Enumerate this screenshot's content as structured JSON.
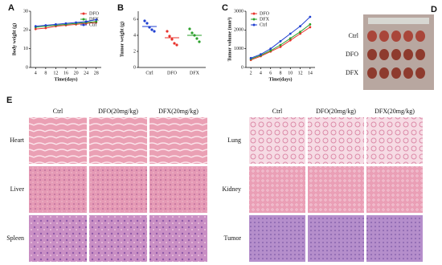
{
  "chart_data": [
    {
      "type": "line",
      "label": "A",
      "xlabel": "Time(days)",
      "ylabel": "Body weight (g)",
      "x": [
        4,
        8,
        12,
        16,
        20,
        24,
        28
      ],
      "xlim": [
        2,
        30
      ],
      "xticks": [
        4,
        8,
        12,
        16,
        20,
        24,
        28
      ],
      "ylim": [
        0,
        30
      ],
      "yticks": [
        0,
        10,
        20,
        30
      ],
      "legend": "upper right",
      "series": [
        {
          "name": "DFO",
          "color": "#e8322b",
          "values": [
            20.5,
            21,
            22,
            22.5,
            23,
            23.5,
            24
          ]
        },
        {
          "name": "DFX",
          "color": "#2ca02c",
          "values": [
            21.5,
            22,
            22.5,
            23,
            23.5,
            24,
            24.5
          ]
        },
        {
          "name": "Ctrl",
          "color": "#1f3fd1",
          "values": [
            22,
            22.5,
            23,
            23.5,
            24,
            24.5,
            25.5
          ]
        }
      ]
    },
    {
      "type": "dot",
      "label": "B",
      "ylabel": "Tumor weight (g)",
      "categories": [
        "Ctrl",
        "DFO",
        "DFX"
      ],
      "colors": [
        "#1f3fd1",
        "#e8322b",
        "#2ca02c"
      ],
      "values": [
        [
          5.8,
          5.5,
          5.0,
          4.7,
          4.5
        ],
        [
          4.5,
          3.9,
          3.5,
          3.0,
          2.8
        ],
        [
          4.8,
          4.3,
          4.0,
          3.6,
          3.2
        ]
      ],
      "means": [
        5.1,
        3.7,
        4.0
      ],
      "ylim": [
        0,
        7
      ],
      "yticks": [
        0,
        2,
        4,
        6
      ]
    },
    {
      "type": "line",
      "label": "C",
      "xlabel": "Time(days)",
      "ylabel": "Tumor volume (mm³)",
      "x": [
        2,
        4,
        6,
        8,
        10,
        12,
        14
      ],
      "xlim": [
        1,
        15
      ],
      "xticks": [
        2,
        4,
        6,
        8,
        10,
        12,
        14
      ],
      "ylim": [
        0,
        3000
      ],
      "yticks": [
        0,
        1000,
        2000,
        3000
      ],
      "legend": "upper left",
      "series": [
        {
          "name": "DFO",
          "color": "#e8322b",
          "values": [
            400,
            600,
            850,
            1100,
            1450,
            1800,
            2150
          ]
        },
        {
          "name": "DFX",
          "color": "#2ca02c",
          "values": [
            450,
            650,
            900,
            1200,
            1550,
            1900,
            2300
          ]
        },
        {
          "name": "Ctrl",
          "color": "#1f3fd1",
          "values": [
            500,
            700,
            1000,
            1400,
            1800,
            2200,
            2700
          ]
        }
      ]
    }
  ],
  "photo": {
    "label": "D",
    "rows": [
      "Ctrl",
      "DFO",
      "DFX"
    ]
  },
  "histology": {
    "label": "E",
    "left": {
      "columns": [
        "Ctrl",
        "DFO(20mg/kg)",
        "DFX(20mg/kg)"
      ],
      "rows": [
        "Heart",
        "Liver",
        "Spleen"
      ]
    },
    "right": {
      "columns": [
        "Ctrl",
        "DFO(20mg/kg)",
        "DFX(20mg/kg)"
      ],
      "rows": [
        "Lung",
        "Kidney",
        "Tumor"
      ]
    }
  }
}
